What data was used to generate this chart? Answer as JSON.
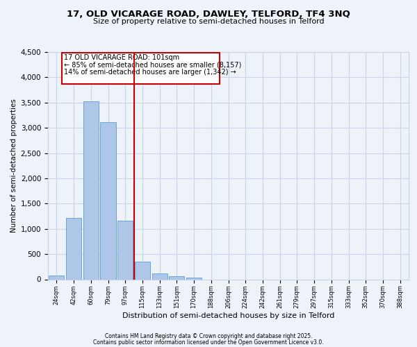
{
  "title_line1": "17, OLD VICARAGE ROAD, DAWLEY, TELFORD, TF4 3NQ",
  "title_line2": "Size of property relative to semi-detached houses in Telford",
  "xlabel": "Distribution of semi-detached houses by size in Telford",
  "ylabel": "Number of semi-detached properties",
  "bin_labels": [
    "24sqm",
    "42sqm",
    "60sqm",
    "79sqm",
    "97sqm",
    "115sqm",
    "133sqm",
    "151sqm",
    "170sqm",
    "188sqm",
    "206sqm",
    "224sqm",
    "242sqm",
    "261sqm",
    "279sqm",
    "297sqm",
    "315sqm",
    "333sqm",
    "352sqm",
    "370sqm",
    "388sqm"
  ],
  "bar_values": [
    75,
    1220,
    3520,
    3110,
    1160,
    350,
    110,
    55,
    35,
    0,
    0,
    0,
    0,
    0,
    0,
    0,
    0,
    0,
    0,
    0,
    0
  ],
  "bar_color": "#aec6e8",
  "bar_edge_color": "#5a9fd4",
  "vline_x": 4.5,
  "vline_color": "#cc0000",
  "annotation_title": "17 OLD VICARAGE ROAD: 101sqm",
  "annotation_line1": "← 85% of semi-detached houses are smaller (8,157)",
  "annotation_line2": "14% of semi-detached houses are larger (1,342) →",
  "annotation_box_color": "#cc0000",
  "ylim": [
    0,
    4500
  ],
  "yticks": [
    0,
    500,
    1000,
    1500,
    2000,
    2500,
    3000,
    3500,
    4000,
    4500
  ],
  "footer_line1": "Contains HM Land Registry data © Crown copyright and database right 2025.",
  "footer_line2": "Contains public sector information licensed under the Open Government Licence v3.0.",
  "bg_color": "#eef2f9",
  "grid_color": "#c8d4e8"
}
